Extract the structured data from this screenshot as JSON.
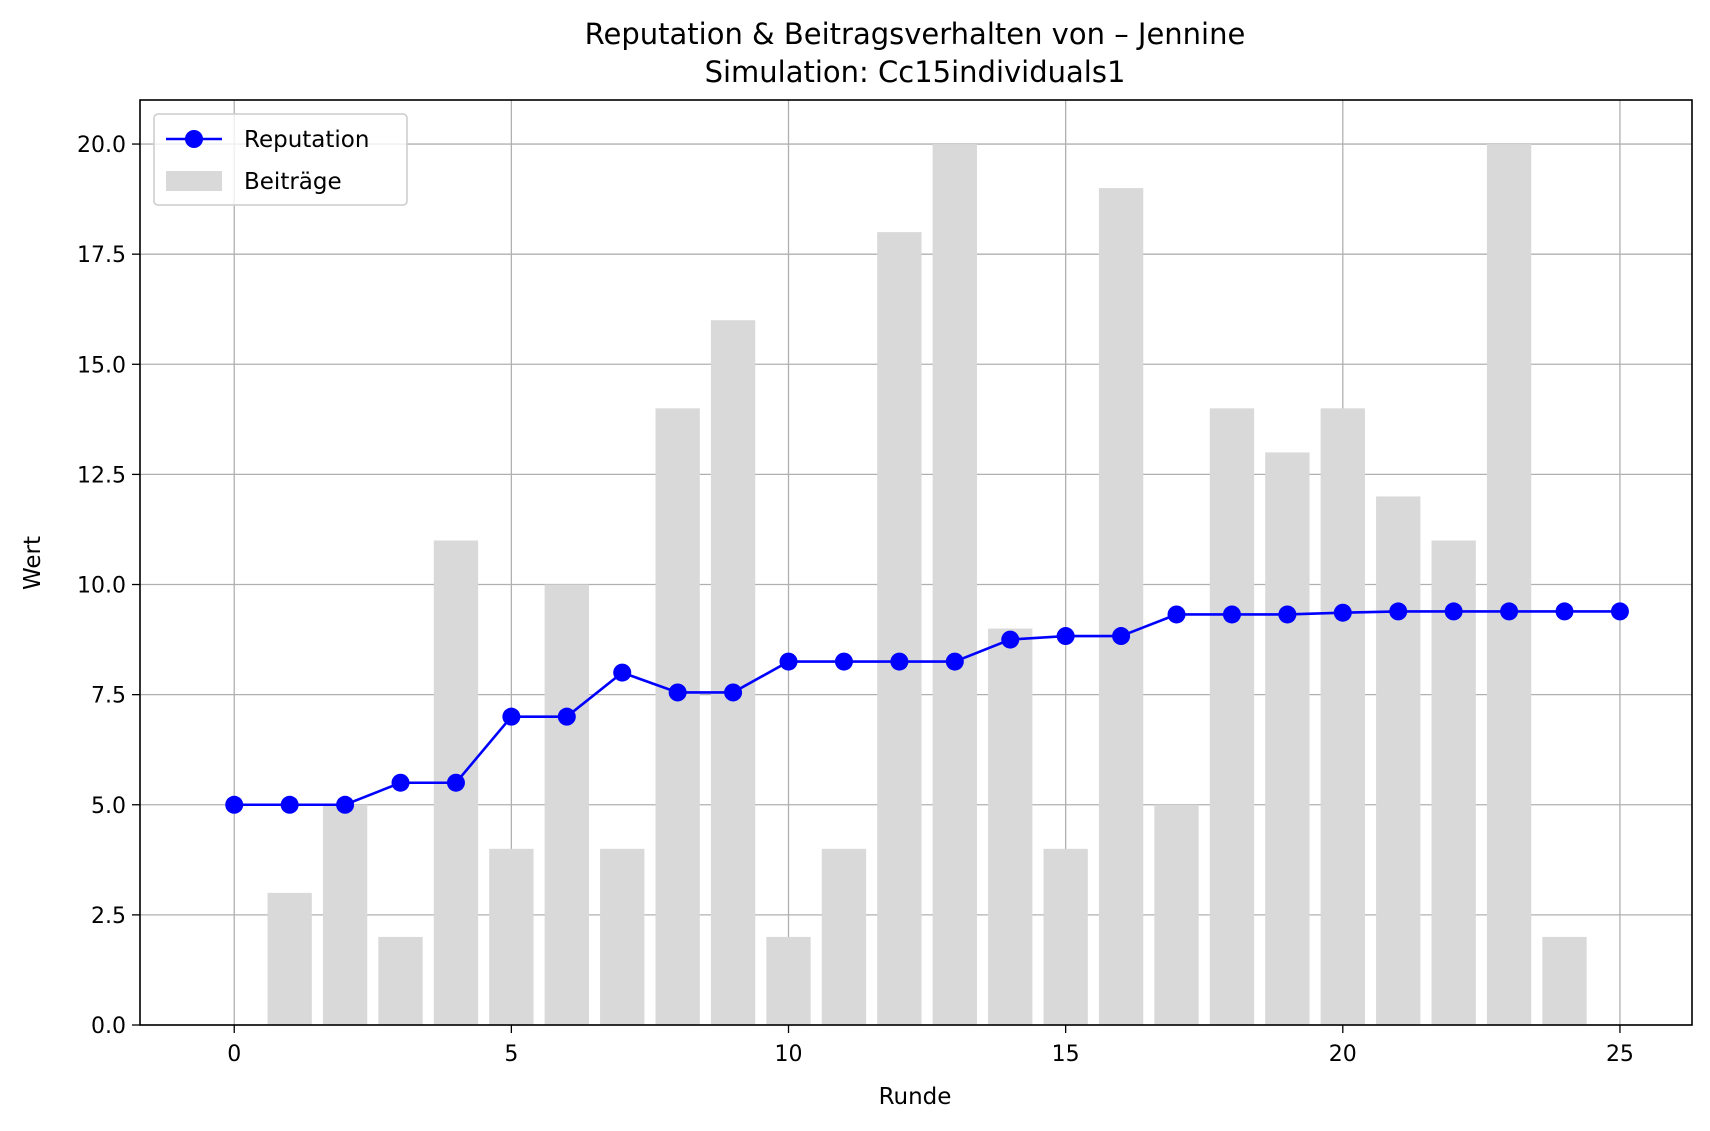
{
  "chart_data": {
    "type": "bar",
    "title": "Reputation & Beitragsverhalten von – Jennine",
    "subtitle": "Simulation: Cc15individuals1",
    "xlabel": "Runde",
    "ylabel": "Wert",
    "xlim": [
      -1.7,
      26.3
    ],
    "ylim": [
      0,
      21
    ],
    "xticks": [
      0,
      5,
      10,
      15,
      20,
      25
    ],
    "yticks": [
      0,
      2.5,
      5,
      7.5,
      10,
      12.5,
      15,
      17.5,
      20
    ],
    "x_tick_labels": [
      "0",
      "5",
      "10",
      "15",
      "20",
      "25"
    ],
    "y_tick_labels": [
      "0.0",
      "2.5",
      "5.0",
      "7.5",
      "10.0",
      "12.5",
      "15.0",
      "17.5",
      "20.0"
    ],
    "grid": true,
    "legend_position": "top-left",
    "series": [
      {
        "name": "Reputation",
        "kind": "line",
        "color": "#0000ff",
        "marker": "circle",
        "x": [
          0,
          1,
          2,
          3,
          4,
          5,
          6,
          7,
          8,
          9,
          10,
          11,
          12,
          13,
          14,
          15,
          16,
          17,
          18,
          19,
          20,
          21,
          22,
          23,
          24,
          25
        ],
        "values": [
          5.0,
          5.0,
          5.0,
          5.5,
          5.5,
          7.0,
          7.0,
          8.0,
          7.55,
          7.55,
          8.25,
          8.25,
          8.25,
          8.25,
          8.75,
          8.83,
          8.83,
          9.32,
          9.32,
          9.32,
          9.36,
          9.39,
          9.39,
          9.39,
          9.39,
          9.39
        ]
      },
      {
        "name": "Beiträge",
        "kind": "bar",
        "color": "#d9d9d9",
        "x": [
          1,
          2,
          3,
          4,
          5,
          6,
          7,
          8,
          9,
          10,
          11,
          12,
          13,
          14,
          15,
          16,
          17,
          18,
          19,
          20,
          21,
          22,
          23,
          24
        ],
        "values": [
          3,
          5,
          2,
          11,
          4,
          10,
          4,
          14,
          16,
          2,
          4,
          18,
          20,
          9,
          4,
          19,
          5,
          14,
          13,
          14,
          12,
          11,
          20,
          2
        ]
      }
    ]
  }
}
